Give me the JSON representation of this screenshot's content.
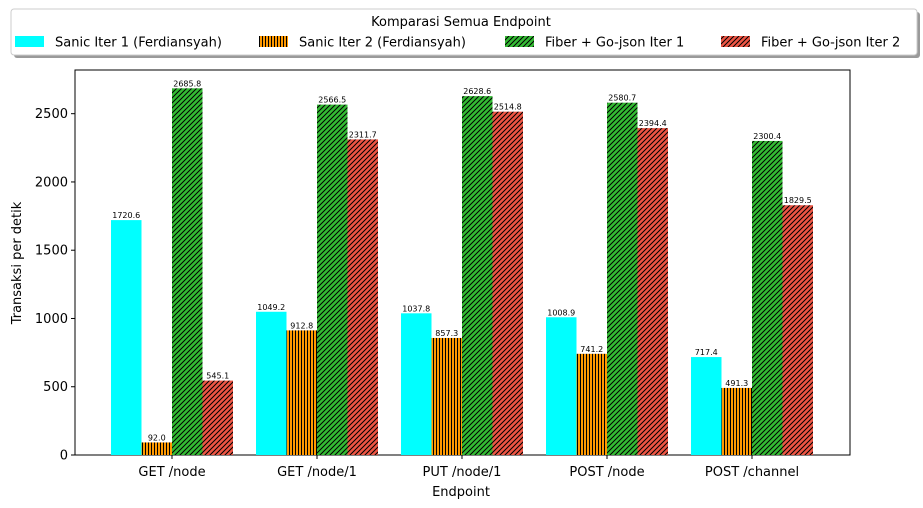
{
  "chart_data": {
    "type": "bar",
    "title": "",
    "legend_title": "Komparasi Semua Endpoint",
    "legend_position": "top",
    "xlabel": "Endpoint",
    "ylabel": "Transaksi per detik",
    "ylim": [
      0,
      2820
    ],
    "yticks": [
      0,
      500,
      1000,
      1500,
      2000,
      2500
    ],
    "categories": [
      "GET /node",
      "GET /node/1",
      "PUT /node/1",
      "POST /node",
      "POST /channel"
    ],
    "series": [
      {
        "name": "Sanic Iter 1 (Ferdiansyah)",
        "color": "#00ffff",
        "pattern": "solid",
        "values": [
          1720.6,
          1049.2,
          1037.8,
          1008.9,
          717.4
        ]
      },
      {
        "name": "Sanic Iter 2 (Ferdiansyah)",
        "color": "#ff9900",
        "pattern": "vertical-lines",
        "values": [
          92.0,
          912.8,
          857.3,
          741.2,
          491.3
        ]
      },
      {
        "name": "Fiber + Go-json Iter 1",
        "color": "#33bb33",
        "pattern": "diagonal-lines",
        "values": [
          2685.8,
          2566.5,
          2628.6,
          2580.7,
          2300.4
        ]
      },
      {
        "name": "Fiber + Go-json Iter 2",
        "color": "#ee5544",
        "pattern": "diagonal-lines",
        "values": [
          545.1,
          2311.7,
          2514.8,
          2394.4,
          1829.5
        ]
      }
    ]
  }
}
